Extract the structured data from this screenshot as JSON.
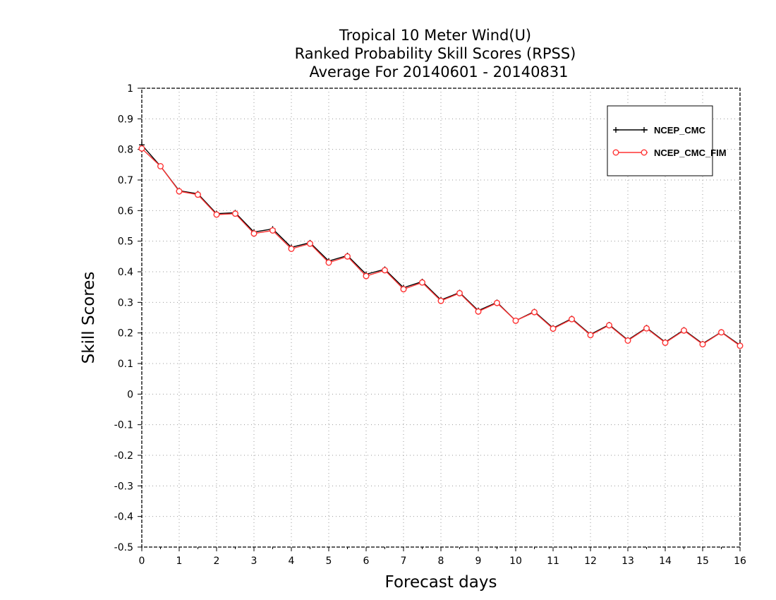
{
  "chart_data": {
    "type": "line",
    "title": [
      "Tropical 10 Meter Wind(U)",
      "Ranked Probability Skill Scores (RPSS)",
      "Average For 20140601 - 20140831"
    ],
    "xlabel": "Forecast days",
    "ylabel": "Skill Scores",
    "xlim": [
      0,
      16
    ],
    "ylim": [
      -0.5,
      1
    ],
    "x_ticks": [
      "0",
      "1",
      "2",
      "3",
      "4",
      "5",
      "6",
      "7",
      "8",
      "9",
      "10",
      "11",
      "12",
      "13",
      "14",
      "15",
      "16"
    ],
    "y_ticks": [
      "-0.5",
      "-0.4",
      "-0.3",
      "-0.2",
      "-0.1",
      "0",
      "0.1",
      "0.2",
      "0.3",
      "0.4",
      "0.5",
      "0.6",
      "0.7",
      "0.8",
      "0.9",
      "1"
    ],
    "grid": true,
    "legend_position": "top-right",
    "x": [
      0,
      0.5,
      1,
      1.5,
      2,
      2.5,
      3,
      3.5,
      4,
      4.5,
      5,
      5.5,
      6,
      6.5,
      7,
      7.5,
      8,
      8.5,
      9,
      9.5,
      10,
      10.5,
      11,
      11.5,
      12,
      12.5,
      13,
      13.5,
      14,
      14.5,
      15,
      15.5,
      16
    ],
    "series": [
      {
        "name": "NCEP_CMC",
        "color": "#000000",
        "marker": "plus",
        "values": [
          0.815,
          0.745,
          0.665,
          0.655,
          0.59,
          0.593,
          0.53,
          0.54,
          0.48,
          0.495,
          0.435,
          0.453,
          0.392,
          0.408,
          0.348,
          0.368,
          0.308,
          0.332,
          0.273,
          0.3,
          0.24,
          0.27,
          0.216,
          0.247,
          0.195,
          0.227,
          0.177,
          0.217,
          0.17,
          0.21,
          0.165,
          0.203,
          0.16
        ]
      },
      {
        "name": "NCEP_CMC_FIM",
        "color": "#ff3333",
        "marker": "circle",
        "values": [
          0.803,
          0.745,
          0.663,
          0.652,
          0.587,
          0.59,
          0.525,
          0.535,
          0.475,
          0.492,
          0.43,
          0.45,
          0.386,
          0.405,
          0.343,
          0.365,
          0.305,
          0.33,
          0.27,
          0.298,
          0.24,
          0.268,
          0.214,
          0.245,
          0.193,
          0.225,
          0.175,
          0.215,
          0.168,
          0.208,
          0.163,
          0.202,
          0.158
        ]
      }
    ]
  }
}
